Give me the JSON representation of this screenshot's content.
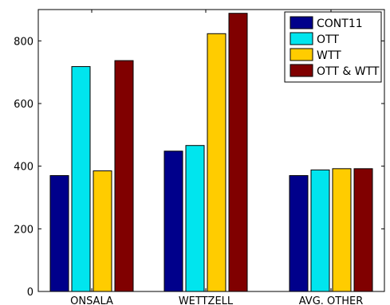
{
  "chart_data": {
    "type": "bar",
    "categories": [
      "ONSALA",
      "WETTZELL",
      "AVG. OTHER"
    ],
    "series": [
      {
        "name": "CONT11",
        "color": "#00008b",
        "values": [
          370,
          448,
          370
        ]
      },
      {
        "name": "OTT",
        "color": "#00e5ee",
        "values": [
          718,
          466,
          388
        ]
      },
      {
        "name": "WTT",
        "color": "#ffcc00",
        "values": [
          385,
          823,
          392
        ]
      },
      {
        "name": "OTT & WTT",
        "color": "#800000",
        "values": [
          737,
          888,
          392
        ]
      }
    ],
    "yticks": [
      0,
      200,
      400,
      600,
      800
    ],
    "ylim": [
      0,
      900
    ],
    "legend_position": "top-right",
    "grid": false
  }
}
